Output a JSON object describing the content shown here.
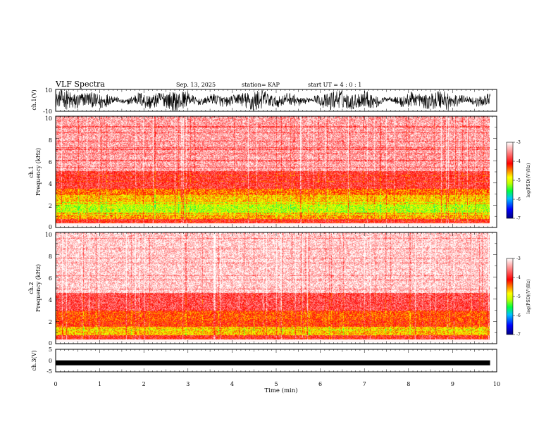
{
  "header": {
    "title": "VLF Spectra",
    "date": "Sep. 13, 2025",
    "station": "station= KAP",
    "start_ut": "start  UT =   4 : 0  : 1"
  },
  "chart_data": [
    {
      "type": "line",
      "name": "ch1-waveform",
      "ylabel": "ch.1(V)",
      "ylim": [
        -10,
        10
      ],
      "yticks": [
        "10",
        "-10"
      ],
      "xlim": [
        0,
        10
      ],
      "description": "dense oscillating waveform trace, roughly -9 to +9 V"
    },
    {
      "type": "heatmap",
      "name": "ch1-spectrogram",
      "ylabel_channel": "ch.1",
      "ylabel": "Frequency (kHz)",
      "ylim": [
        0,
        10
      ],
      "yticks": [
        "0",
        "2",
        "4",
        "6",
        "8",
        "10"
      ],
      "xlim": [
        0,
        9.85
      ],
      "bands": [
        {
          "fmin": 0,
          "fmax": 0.6,
          "level": -4.0
        },
        {
          "fmin": 0.6,
          "fmax": 1.2,
          "level": -4.6
        },
        {
          "fmin": 1.2,
          "fmax": 1.9,
          "level": -5.1
        },
        {
          "fmin": 1.9,
          "fmax": 2.8,
          "level": -4.7
        },
        {
          "fmin": 2.8,
          "fmax": 3.4,
          "level": -4.4
        },
        {
          "fmin": 3.4,
          "fmax": 5.0,
          "level": -3.9
        },
        {
          "fmin": 5.0,
          "fmax": 10,
          "level": -3.4
        }
      ]
    },
    {
      "type": "heatmap",
      "name": "ch2-spectrogram",
      "ylabel_channel": "ch.2",
      "ylabel": "Frequency (kHz)",
      "ylim": [
        0,
        10
      ],
      "yticks": [
        "0",
        "2",
        "4",
        "6",
        "8",
        "10"
      ],
      "xlim": [
        0,
        9.85
      ],
      "bands": [
        {
          "fmin": 0,
          "fmax": 0.6,
          "level": -4.0
        },
        {
          "fmin": 0.6,
          "fmax": 1.4,
          "level": -4.7
        },
        {
          "fmin": 1.4,
          "fmax": 2.0,
          "level": -4.2
        },
        {
          "fmin": 2.0,
          "fmax": 2.8,
          "level": -4.3
        },
        {
          "fmin": 2.8,
          "fmax": 4.5,
          "level": -3.8
        },
        {
          "fmin": 4.5,
          "fmax": 10,
          "level": -3.2
        }
      ]
    },
    {
      "type": "line",
      "name": "ch3-waveform",
      "ylabel": "ch.3(V)",
      "ylim": [
        -5,
        5
      ],
      "yticks": [
        "5",
        "0",
        "-5"
      ],
      "xlim": [
        0,
        10
      ],
      "level": -1,
      "xlabel": "Time (min)",
      "xticks": [
        "0",
        "1",
        "2",
        "3",
        "4",
        "5",
        "6",
        "7",
        "8",
        "9",
        "10"
      ]
    }
  ],
  "colorbar": {
    "label": "log(PSD)(V²/Hz)",
    "range": [
      -7,
      -3
    ],
    "ticks": [
      "-3",
      "-4",
      "-5",
      "-6",
      "-7"
    ],
    "colors": [
      "#000080",
      "#0000ff",
      "#00c0ff",
      "#00ff40",
      "#c0ff00",
      "#ffff00",
      "#ff8000",
      "#ff0000",
      "#ff8080",
      "#ffffff"
    ]
  }
}
